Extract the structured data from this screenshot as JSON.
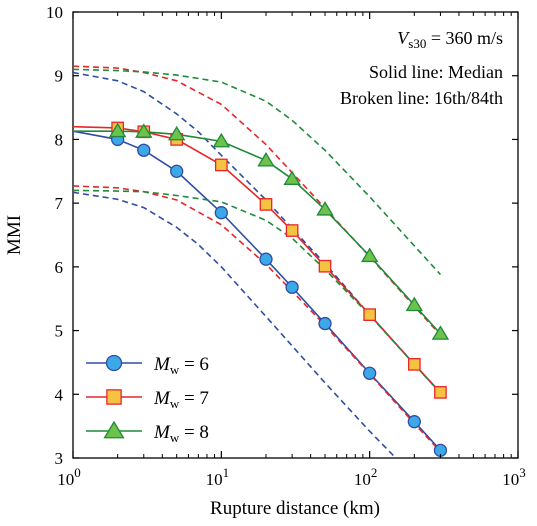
{
  "chart_data": {
    "type": "line",
    "xscale": "log",
    "xlim": [
      1,
      1000
    ],
    "ylim": [
      3,
      10
    ],
    "xlabel": "Rupture distance (km)",
    "ylabel": "MMI",
    "x_ticks": [
      {
        "value": 1,
        "base": "10",
        "exp": "0"
      },
      {
        "value": 10,
        "base": "10",
        "exp": "1"
      },
      {
        "value": 100,
        "base": "10",
        "exp": "2"
      },
      {
        "value": 1000,
        "base": "10",
        "exp": "3"
      }
    ],
    "y_ticks": [
      3,
      4,
      5,
      6,
      7,
      8,
      9,
      10
    ],
    "grid": false,
    "annotations": {
      "vs30": {
        "var": "V",
        "sub": "s30",
        "rest": " = 360 m/s"
      },
      "solid": "Solid line: Median",
      "broken": "Broken line: 16th/84th"
    },
    "legend": {
      "placement": "bottom-left",
      "var": "M",
      "sub": "w"
    },
    "series": [
      {
        "name": "6",
        "color": "#2e4da3",
        "marker": "circle",
        "marker_fill": "#3da8e8",
        "median": {
          "x": [
            1,
            2,
            3,
            5,
            10,
            20,
            30,
            50,
            100,
            200,
            300
          ],
          "y": [
            8.13,
            8.0,
            7.83,
            7.5,
            6.85,
            6.12,
            5.68,
            5.11,
            4.33,
            3.57,
            3.12
          ]
        },
        "upper": {
          "x": [
            1,
            2,
            3,
            5,
            7,
            10,
            20,
            30,
            50,
            100,
            200,
            300
          ],
          "y": [
            9.05,
            8.92,
            8.75,
            8.4,
            8.12,
            7.75,
            7.05,
            6.6,
            6.05,
            5.25,
            4.47,
            4.02
          ]
        },
        "lower": {
          "x": [
            1,
            2,
            3,
            5,
            7,
            10,
            20,
            30,
            50,
            100,
            150
          ],
          "y": [
            7.17,
            7.06,
            6.93,
            6.62,
            6.35,
            6.0,
            5.22,
            4.76,
            4.18,
            3.42,
            3.0
          ]
        }
      },
      {
        "name": "7",
        "color": "#e8262a",
        "marker": "square",
        "marker_fill": "#f5c242",
        "median": {
          "x": [
            1,
            2,
            3,
            5,
            10,
            20,
            30,
            50,
            100,
            200,
            300
          ],
          "y": [
            8.2,
            8.18,
            8.12,
            8.0,
            7.6,
            6.98,
            6.57,
            6.01,
            5.25,
            4.47,
            4.03
          ]
        },
        "upper": {
          "x": [
            1,
            2,
            3,
            5,
            10,
            20,
            30,
            50,
            100,
            200,
            300
          ],
          "y": [
            9.15,
            9.12,
            9.05,
            8.92,
            8.55,
            7.92,
            7.48,
            6.92,
            6.16,
            5.38,
            4.93
          ]
        },
        "lower": {
          "x": [
            1,
            2,
            3,
            5,
            10,
            20,
            30,
            50,
            100,
            200,
            300
          ],
          "y": [
            7.27,
            7.24,
            7.18,
            7.05,
            6.66,
            6.04,
            5.62,
            5.08,
            4.32,
            3.54,
            3.1
          ]
        }
      },
      {
        "name": "8",
        "color": "#1f8a3a",
        "marker": "triangle",
        "marker_fill": "#6cc24a",
        "median": {
          "x": [
            1,
            2,
            3,
            5,
            10,
            20,
            30,
            50,
            100,
            200,
            300
          ],
          "y": [
            8.13,
            8.13,
            8.12,
            8.08,
            7.97,
            7.67,
            7.38,
            6.9,
            6.17,
            5.4,
            4.95
          ]
        },
        "upper": {
          "x": [
            1,
            2,
            3,
            5,
            10,
            20,
            30,
            50,
            100,
            200,
            300
          ],
          "y": [
            9.1,
            9.08,
            9.06,
            9.01,
            8.9,
            8.6,
            8.3,
            7.83,
            7.1,
            6.33,
            5.88
          ]
        },
        "lower": {
          "x": [
            1,
            2,
            3,
            5,
            10,
            20,
            30,
            50,
            100,
            200,
            300
          ],
          "y": [
            7.2,
            7.19,
            7.18,
            7.12,
            7.02,
            6.73,
            6.45,
            5.96,
            5.24,
            4.47,
            4.02
          ]
        }
      }
    ]
  }
}
